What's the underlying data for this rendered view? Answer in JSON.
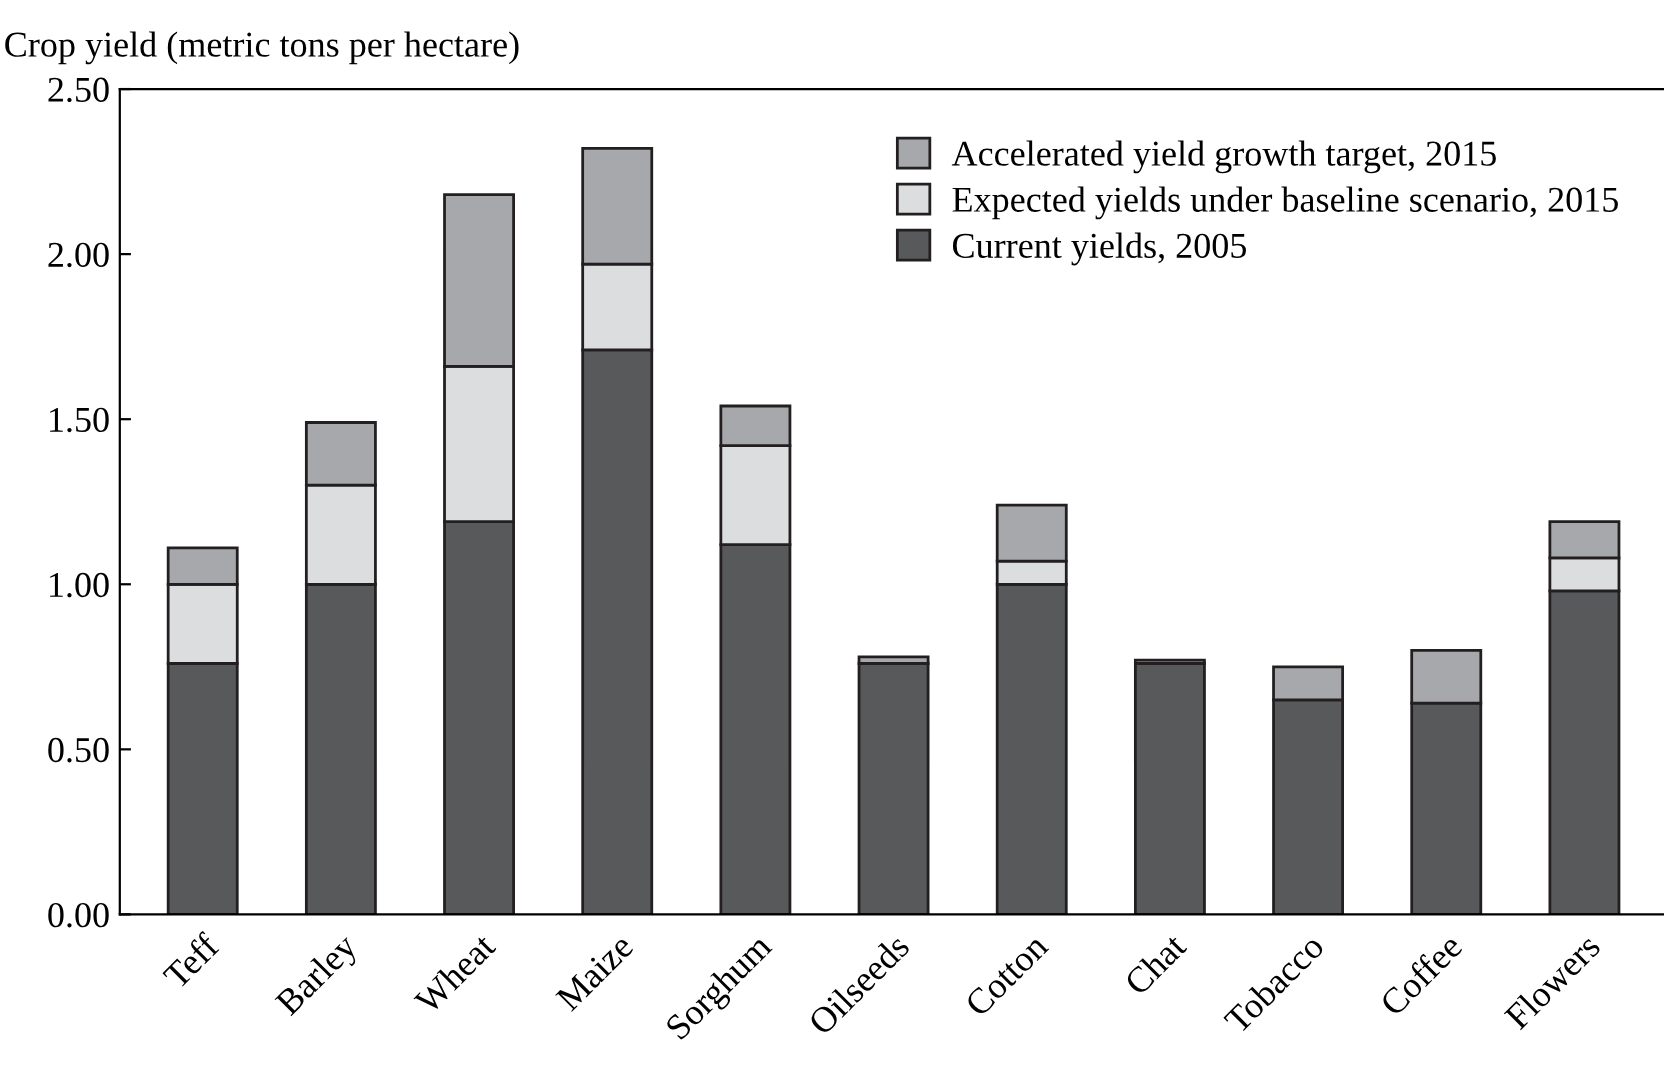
{
  "chart_data": {
    "type": "bar",
    "stacked": true,
    "ylabel": "Crop yield (metric tons per hectare)",
    "categories": [
      "Teff",
      "Barley",
      "Wheat",
      "Maize",
      "Sorghum",
      "Oilseeds",
      "Cotton",
      "Chat",
      "Tobacco",
      "Coffee",
      "Flowers"
    ],
    "series": [
      {
        "name": "Current yields, 2005",
        "color": "#58595b",
        "values": [
          0.76,
          1.0,
          1.19,
          1.71,
          1.12,
          0.76,
          1.0,
          0.76,
          0.65,
          0.64,
          0.98
        ]
      },
      {
        "name": "Expected yields under baseline scenario, 2015",
        "color": "#dcdddf",
        "values": [
          0.24,
          0.3,
          0.47,
          0.26,
          0.3,
          null,
          0.07,
          null,
          null,
          null,
          0.1
        ]
      },
      {
        "name": "Accelerated yield growth target, 2015",
        "color": "#a7a8ab",
        "values": [
          0.11,
          0.19,
          0.52,
          0.35,
          0.12,
          0.02,
          0.17,
          0.01,
          0.1,
          0.16,
          0.11
        ]
      }
    ],
    "ylim": [
      0,
      2.5
    ],
    "yticks": [
      {
        "value": 0,
        "label": "0.00"
      },
      {
        "value": 0.5,
        "label": "0.50"
      },
      {
        "value": 1.0,
        "label": "1.00"
      },
      {
        "value": 1.5,
        "label": "1.50"
      },
      {
        "value": 2.0,
        "label": "2.00"
      },
      {
        "value": 2.5,
        "label": "2.50"
      }
    ],
    "legend": "top right",
    "grid": false
  }
}
